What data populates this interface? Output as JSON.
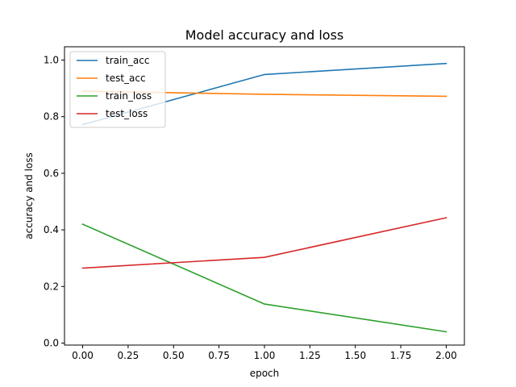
{
  "chart_data": {
    "type": "line",
    "title": "Model accuracy and loss",
    "xlabel": "epoch",
    "ylabel": "accuracy and loss",
    "x": [
      0,
      1,
      2
    ],
    "xlim": [
      -0.1,
      2.1
    ],
    "ylim": [
      -0.007,
      1.047
    ],
    "xticks": [
      "0.00",
      "0.25",
      "0.50",
      "0.75",
      "1.00",
      "1.25",
      "1.50",
      "1.75",
      "2.00"
    ],
    "yticks": [
      "0.0",
      "0.2",
      "0.4",
      "0.6",
      "0.8",
      "1.0"
    ],
    "grid": false,
    "legend_position": "top-left",
    "series": [
      {
        "name": "train_acc",
        "color": "#1f77b4",
        "values": [
          0.772,
          0.949,
          0.988
        ]
      },
      {
        "name": "test_acc",
        "color": "#ff7f0e",
        "values": [
          0.89,
          0.879,
          0.872
        ]
      },
      {
        "name": "train_loss",
        "color": "#2ca02c",
        "values": [
          0.42,
          0.138,
          0.04
        ]
      },
      {
        "name": "test_loss",
        "color": "#d62728",
        "values": [
          0.265,
          0.303,
          0.443
        ]
      }
    ]
  }
}
